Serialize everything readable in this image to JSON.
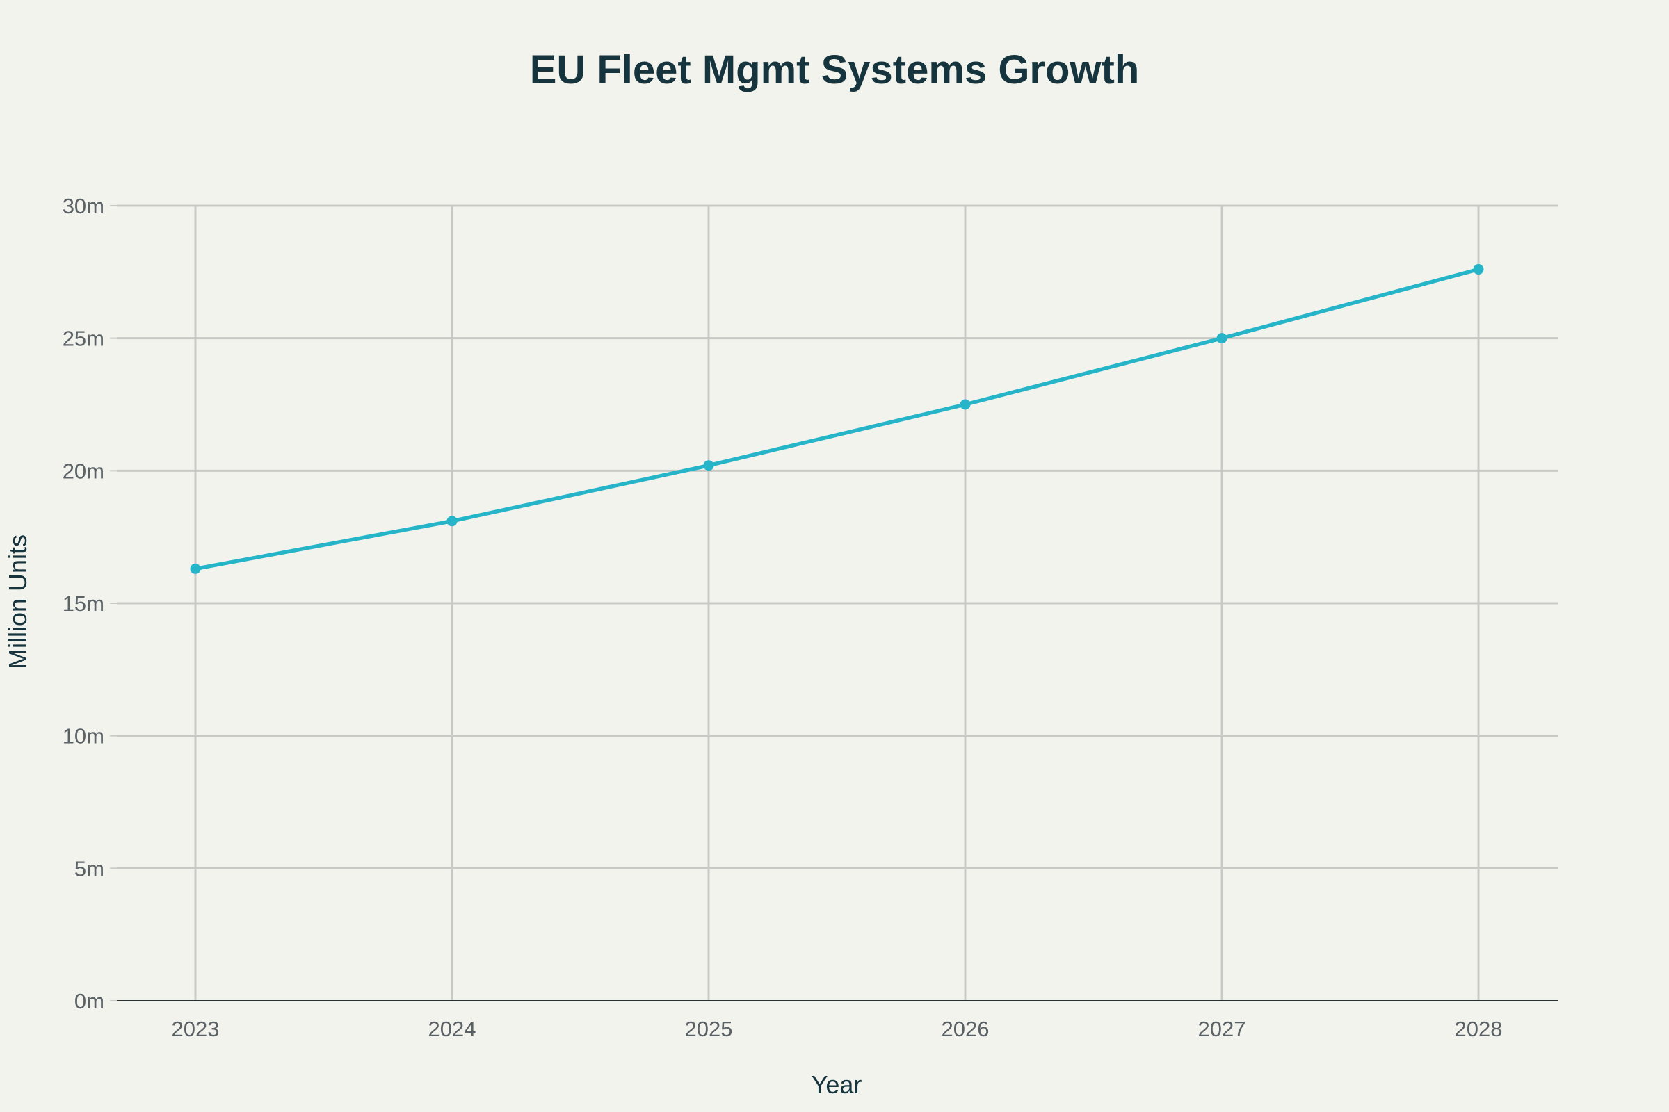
{
  "chart_data": {
    "type": "line",
    "title": "EU Fleet Mgmt Systems Growth",
    "xlabel": "Year",
    "ylabel": "Million Units",
    "x": [
      "2023",
      "2024",
      "2025",
      "2026",
      "2027",
      "2028"
    ],
    "series": [
      {
        "name": "EU Fleet Mgmt Systems",
        "values": [
          16.3,
          18.1,
          20.2,
          22.5,
          25.0,
          27.6
        ],
        "color": "#26b4c8"
      }
    ],
    "ylim": [
      0,
      30
    ],
    "yticks": [
      0,
      5,
      10,
      15,
      20,
      25,
      30
    ],
    "ytick_labels": [
      "0m",
      "5m",
      "10m",
      "15m",
      "20m",
      "25m",
      "30m"
    ],
    "grid": true,
    "legend": "none"
  },
  "colors": {
    "background": "#f3f3ee",
    "grid": "#c8c9c5",
    "title": "#16343d",
    "tick": "#5b6265"
  }
}
